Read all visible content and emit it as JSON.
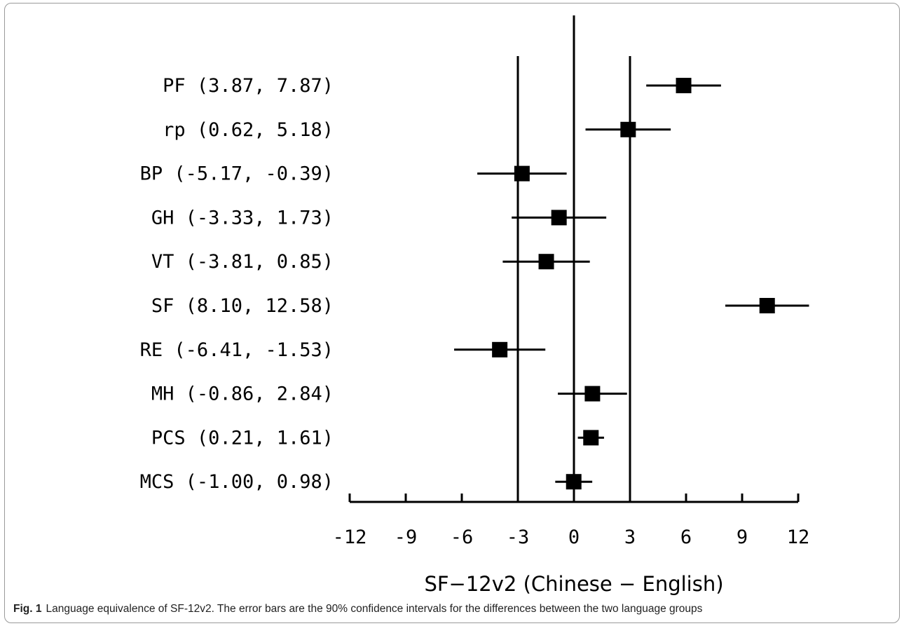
{
  "chart_data": {
    "type": "forest",
    "xlabel": "SF−12v2 (Chinese − English)",
    "xlim": [
      -12,
      12
    ],
    "xticks": [
      "-12",
      "-9",
      "-6",
      "-3",
      "0",
      "3",
      "6",
      "9",
      "12"
    ],
    "xtick_values": [
      -12,
      -9,
      -6,
      -3,
      0,
      3,
      6,
      9,
      12
    ],
    "reference_lines": [
      -3,
      0,
      3
    ],
    "rows": [
      {
        "label": "PF (3.87, 7.87)",
        "estimate": 5.87,
        "lower": 3.87,
        "upper": 7.87
      },
      {
        "label": "rp (0.62, 5.18)",
        "estimate": 2.9,
        "lower": 0.62,
        "upper": 5.18
      },
      {
        "label": "BP (-5.17, -0.39)",
        "estimate": -2.78,
        "lower": -5.17,
        "upper": -0.39
      },
      {
        "label": "GH (-3.33, 1.73)",
        "estimate": -0.8,
        "lower": -3.33,
        "upper": 1.73
      },
      {
        "label": "VT (-3.81, 0.85)",
        "estimate": -1.48,
        "lower": -3.81,
        "upper": 0.85
      },
      {
        "label": "SF (8.10, 12.58)",
        "estimate": 10.34,
        "lower": 8.1,
        "upper": 12.58
      },
      {
        "label": "RE (-6.41, -1.53)",
        "estimate": -3.97,
        "lower": -6.41,
        "upper": -1.53
      },
      {
        "label": "MH (-0.86, 2.84)",
        "estimate": 0.99,
        "lower": -0.86,
        "upper": 2.84
      },
      {
        "label": "PCS (0.21, 1.61)",
        "estimate": 0.91,
        "lower": 0.21,
        "upper": 1.61
      },
      {
        "label": "MCS (-1.00, 0.98)",
        "estimate": -0.01,
        "lower": -1.0,
        "upper": 0.98
      }
    ]
  },
  "caption": {
    "lead": "Fig. 1",
    "text": "Language equivalence of SF-12v2. The error bars are the 90% confidence intervals for the differences between the two language groups"
  }
}
